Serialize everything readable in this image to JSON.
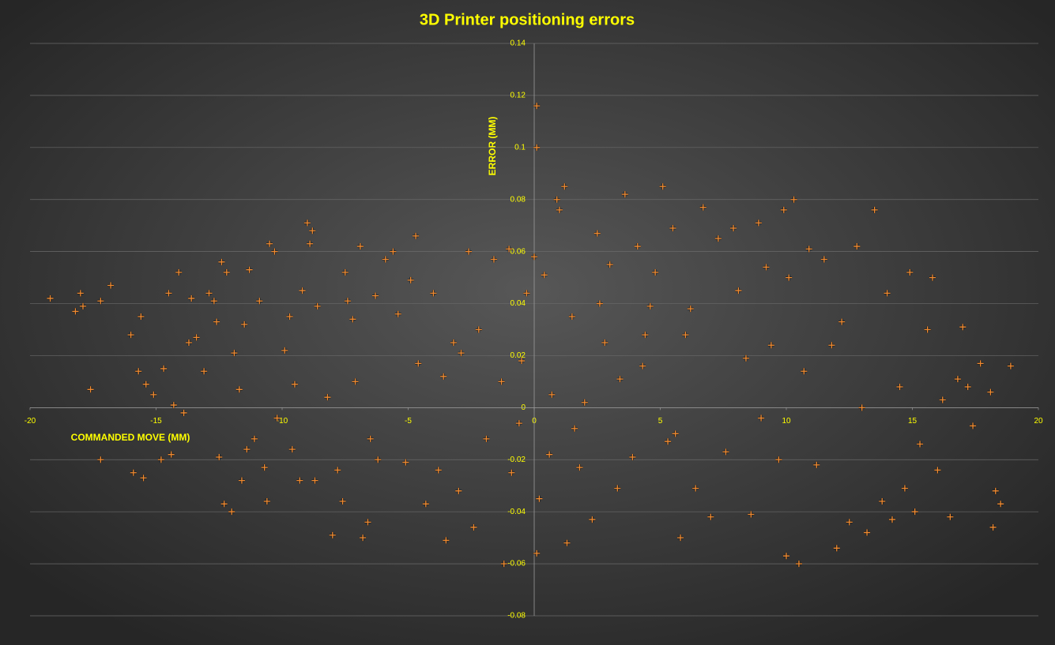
{
  "chart_data": {
    "type": "scatter",
    "title": "3D Printer positioning errors",
    "x_label": "COMMANDED MOVE (MM)",
    "y_label": "ERROR (MM)",
    "color": "#f08a30",
    "grid": true,
    "xlim": [
      -20,
      20
    ],
    "xticks": [
      -20,
      -15,
      -10,
      -5,
      0,
      5,
      10,
      15,
      20
    ],
    "ylim": [
      -0.08,
      0.14
    ],
    "yticks": [
      -0.08,
      -0.06,
      -0.04,
      -0.02,
      0,
      0.02,
      0.04,
      0.06,
      0.08,
      0.1,
      0.12,
      0.14
    ],
    "x": [
      -19.2,
      -18.2,
      -18,
      -17.9,
      -17.6,
      -17.2,
      -17.2,
      -16.8,
      -16,
      -15.9,
      -15.7,
      -15.6,
      -15.5,
      -15.4,
      -15.1,
      -14.8,
      -14.7,
      -14.5,
      -14.4,
      -14.3,
      -14.1,
      -13.9,
      -13.7,
      -13.6,
      -13.4,
      -13.1,
      -12.9,
      -12.7,
      -12.6,
      -12.5,
      -12.4,
      -12.3,
      -12.2,
      -12,
      -11.9,
      -11.7,
      -11.6,
      -11.5,
      -11.4,
      -11.3,
      -11.1,
      -10.9,
      -10.7,
      -10.6,
      -10.5,
      -10.3,
      -10.2,
      -9.9,
      -9.7,
      -9.6,
      -9.5,
      -9.3,
      -9.2,
      -9,
      -8.9,
      -8.8,
      -8.7,
      -8.6,
      -8.2,
      -8,
      -7.8,
      -7.6,
      -7.5,
      -7.4,
      -7.1,
      -6.9,
      -6.8,
      -6.6,
      -6.3,
      -6.2,
      -5.9,
      -5.6,
      -5.4,
      -5.1,
      -4.9,
      -4.7,
      -4.6,
      -4.3,
      -4,
      -3.8,
      -3.5,
      -3.2,
      -3,
      -2.6,
      -2.4,
      -2.2,
      -1.9,
      -1.6,
      -1.3,
      -1,
      -0.9,
      -0.6,
      -0.3,
      0,
      0.1,
      0.1,
      0.1,
      0.2,
      0.4,
      0.6,
      0.9,
      1,
      1.2,
      1.3,
      1.5,
      1.8,
      2,
      2.3,
      2.5,
      2.8,
      3,
      3.3,
      3.6,
      3.9,
      4.1,
      4.4,
      4.6,
      4.8,
      5.1,
      5.3,
      5.5,
      5.8,
      6,
      6.2,
      6.4,
      6.7,
      7,
      7.3,
      7.6,
      7.9,
      8.1,
      8.4,
      8.6,
      8.9,
      9,
      9.2,
      9.4,
      9.7,
      9.9,
      10,
      10.1,
      10.3,
      10.5,
      10.7,
      10.9,
      11.2,
      11.5,
      11.8,
      12,
      12.2,
      12.5,
      12.8,
      13,
      13.2,
      13.5,
      13.8,
      14,
      14.2,
      14.5,
      14.7,
      14.9,
      15.1,
      15.3,
      15.6,
      15.8,
      16,
      16.2,
      16.5,
      16.8,
      17,
      17.2,
      17.4,
      17.7,
      18.1,
      18.2,
      18.3,
      18.5,
      18.9,
      -3.6,
      -2.9,
      -1.2,
      -0.5,
      0.7,
      1.6,
      2.6,
      3.4,
      -6.5,
      -7.2,
      4.3,
      5.6
    ],
    "values": [
      0.042,
      0.037,
      0.044,
      0.039,
      0.007,
      0.041,
      -0.02,
      0.047,
      0.028,
      -0.025,
      0.014,
      0.035,
      -0.027,
      0.009,
      0.005,
      -0.02,
      0.015,
      0.044,
      -0.018,
      0.001,
      0.052,
      -0.002,
      0.025,
      0.042,
      0.027,
      0.014,
      0.044,
      0.041,
      0.033,
      -0.019,
      0.056,
      -0.037,
      0.052,
      -0.04,
      0.021,
      0.007,
      -0.028,
      0.032,
      -0.016,
      0.053,
      -0.012,
      0.041,
      -0.023,
      -0.036,
      0.063,
      0.06,
      -0.004,
      0.022,
      0.035,
      -0.016,
      0.009,
      -0.028,
      0.045,
      0.071,
      0.063,
      0.068,
      -0.028,
      0.039,
      0.004,
      -0.049,
      -0.024,
      -0.036,
      0.052,
      0.041,
      0.01,
      0.062,
      -0.05,
      -0.044,
      0.043,
      -0.02,
      0.057,
      0.06,
      0.036,
      -0.021,
      0.049,
      0.066,
      0.017,
      -0.037,
      0.044,
      -0.024,
      -0.051,
      0.025,
      -0.032,
      0.06,
      -0.046,
      0.03,
      -0.012,
      0.057,
      0.01,
      0.061,
      -0.025,
      -0.006,
      0.044,
      0.058,
      0.116,
      0.1,
      -0.056,
      -0.035,
      0.051,
      -0.018,
      0.08,
      0.076,
      0.085,
      -0.052,
      0.035,
      -0.023,
      0.002,
      -0.043,
      0.067,
      0.025,
      0.055,
      -0.031,
      0.082,
      -0.019,
      0.062,
      0.028,
      0.039,
      0.052,
      0.085,
      -0.013,
      0.069,
      -0.05,
      0.028,
      0.038,
      -0.031,
      0.077,
      -0.042,
      0.065,
      -0.017,
      0.069,
      0.045,
      0.019,
      -0.041,
      0.071,
      -0.004,
      0.054,
      0.024,
      -0.02,
      0.076,
      -0.057,
      0.05,
      0.08,
      -0.06,
      0.014,
      0.061,
      -0.022,
      0.057,
      0.024,
      -0.054,
      0.033,
      -0.044,
      0.062,
      0,
      -0.048,
      0.076,
      -0.036,
      0.044,
      -0.043,
      0.008,
      -0.031,
      0.052,
      -0.04,
      -0.014,
      0.03,
      0.05,
      -0.024,
      0.003,
      -0.042,
      0.011,
      0.031,
      0.008,
      -0.007,
      0.017,
      0.006,
      -0.046,
      -0.032,
      -0.037,
      0.016,
      0.012,
      0.021,
      -0.06,
      0.018,
      0.005,
      -0.008,
      0.04,
      0.011,
      -0.012,
      0.034,
      0.016,
      -0.01
    ]
  }
}
